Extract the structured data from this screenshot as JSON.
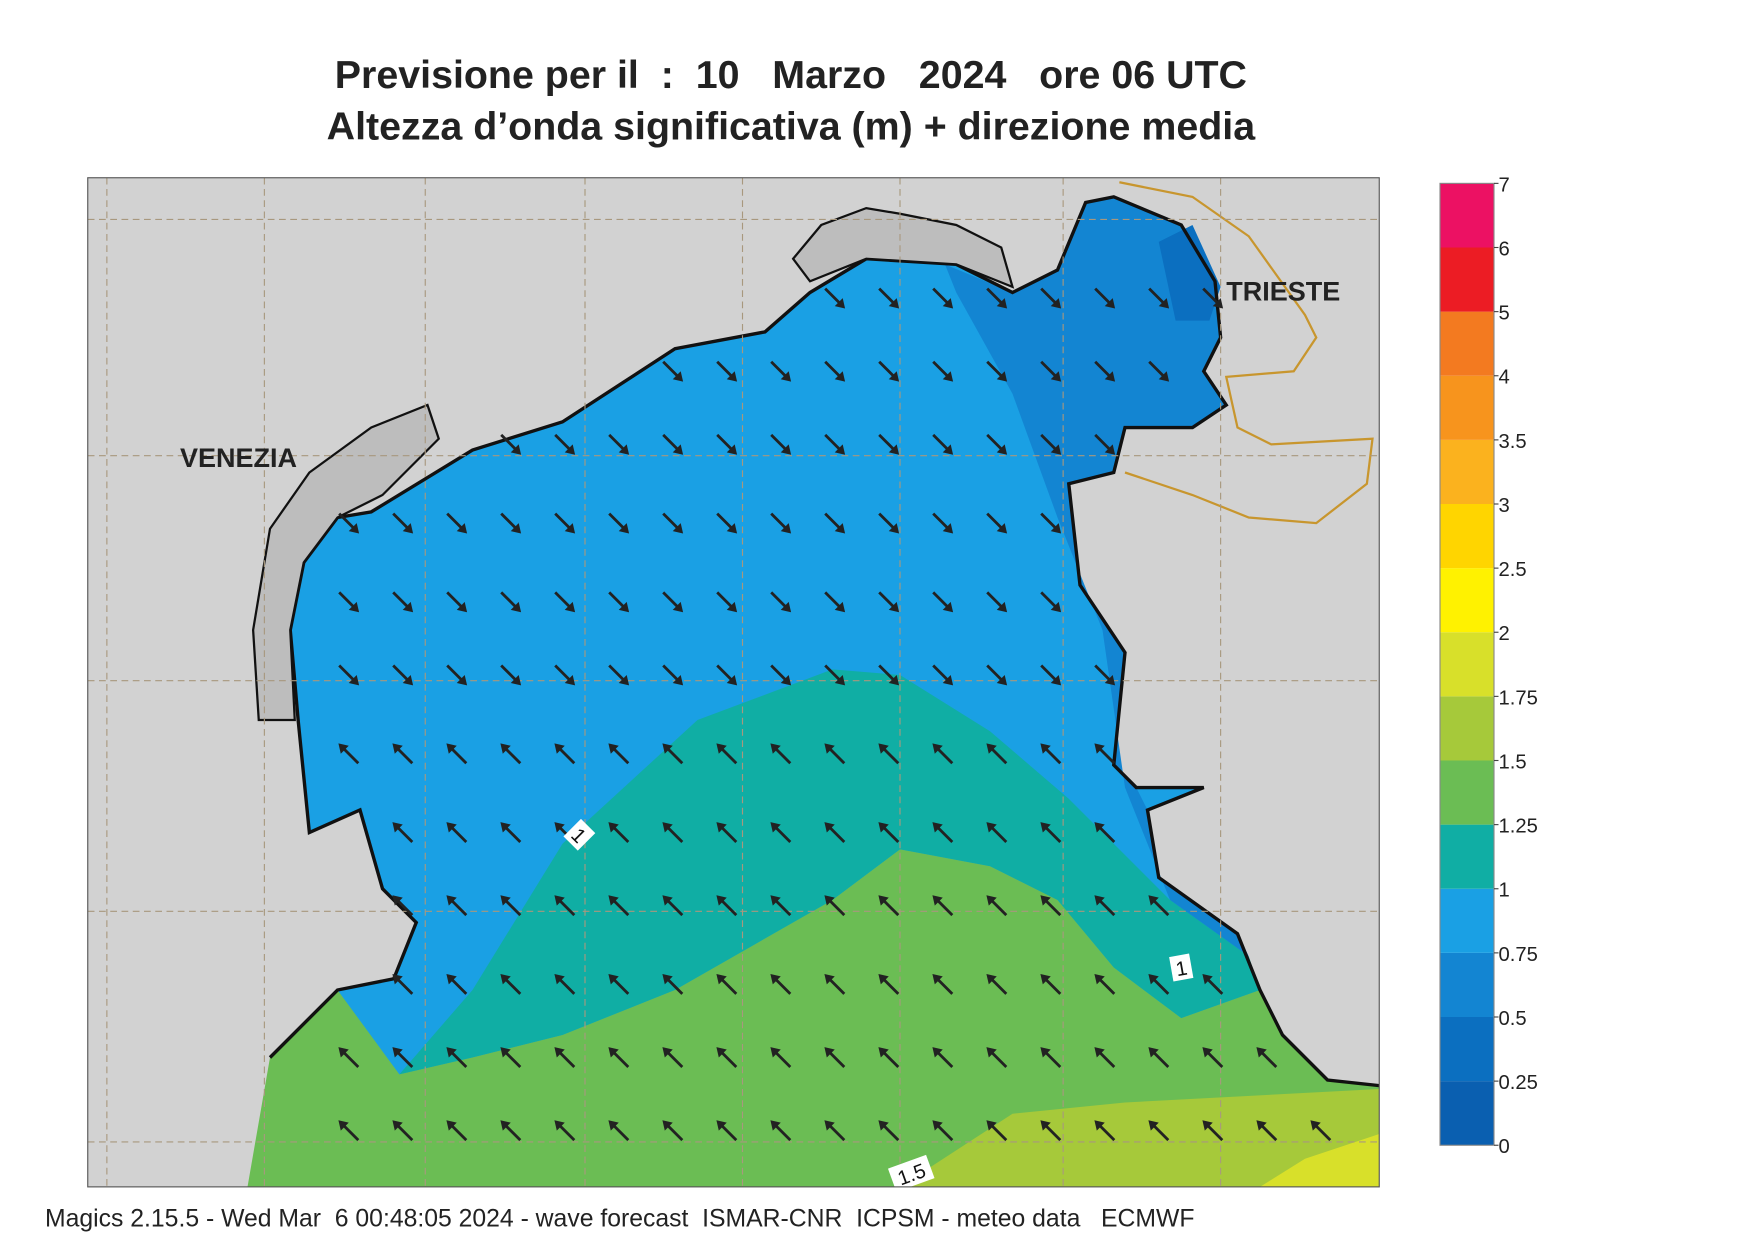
{
  "title": "Previsione per il  :  10   Marzo   2024   ore 06 UTC",
  "subtitle": "Altezza d’onda significativa (m) + direzione media",
  "cities": [
    "VENEZIA",
    "TRIESTE"
  ],
  "contour_labels": [
    "1",
    "1",
    "1.5"
  ],
  "colorbar": {
    "ticks": [
      0,
      0.25,
      0.5,
      0.75,
      1,
      1.25,
      1.5,
      1.75,
      2,
      2.5,
      3,
      3.5,
      4,
      5,
      6,
      7
    ],
    "colors": [
      "#0a5fb0",
      "#0b6fc0",
      "#1385d2",
      "#1aa0e4",
      "#10aea4",
      "#6bbd54",
      "#a6c93a",
      "#d8e02a",
      "#fff200",
      "#ffd500",
      "#fbb21e",
      "#f7941d",
      "#f37a20",
      "#ec1c24",
      "#ec1163"
    ]
  },
  "footer": "Magics 2.15.5 - Wed Mar  6 00:48:05 2024 - wave forecast  ISMAR-CNR  ICPSM - meteo data   ECMWF"
}
